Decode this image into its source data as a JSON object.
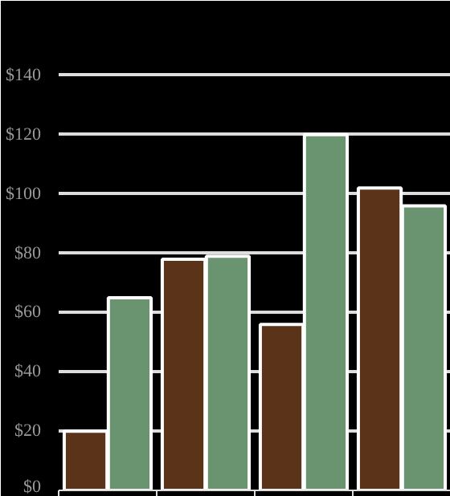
{
  "chart_data": {
    "type": "bar",
    "categories": [
      null,
      null,
      null,
      null
    ],
    "series": [
      {
        "color": "#5a3318",
        "values": [
          20,
          78,
          56,
          102
        ]
      },
      {
        "color": "#6a9470",
        "values": [
          65,
          79,
          120,
          96
        ]
      }
    ],
    "ylim": [
      0,
      150
    ],
    "yticks": [
      {
        "value": 0,
        "label": "$0"
      },
      {
        "value": 20,
        "label": "$20"
      },
      {
        "value": 40,
        "label": "$40"
      },
      {
        "value": 60,
        "label": "$60"
      },
      {
        "value": 80,
        "label": "$80"
      },
      {
        "value": 100,
        "label": "$100"
      },
      {
        "value": 120,
        "label": "$120"
      },
      {
        "value": 140,
        "label": "$140"
      }
    ],
    "grid": "y"
  }
}
